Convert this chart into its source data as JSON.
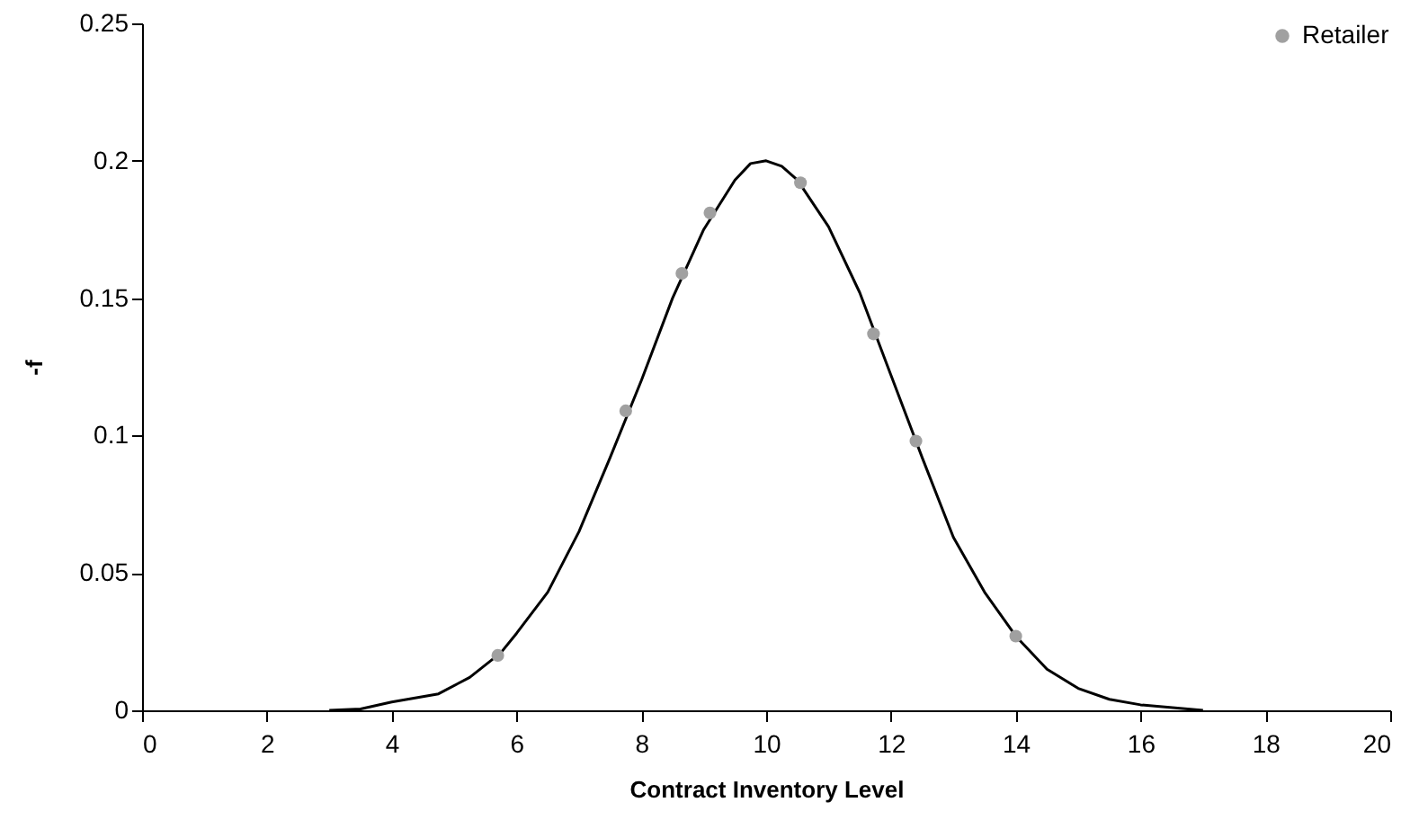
{
  "chart_data": {
    "type": "line",
    "xlabel": "Contract Inventory Level",
    "ylabel": "-f",
    "xlim": [
      0,
      20
    ],
    "xticks": [
      0,
      2,
      4,
      6,
      8,
      10,
      12,
      14,
      16,
      18,
      20
    ],
    "ylim": [
      0,
      0.25
    ],
    "yticks": [
      0,
      0.05,
      0.1,
      0.15,
      0.2,
      0.25
    ],
    "legend": "top right",
    "series": [
      {
        "color": "#000000",
        "x": [
          3,
          3.5,
          4,
          4.75,
          5.25,
          5.75,
          6,
          6.5,
          7,
          7.5,
          8,
          8.5,
          9,
          9.5,
          9.75,
          10,
          10.25,
          10.5,
          11,
          11.5,
          12,
          12.5,
          13,
          13.5,
          14,
          14.5,
          15,
          15.5,
          16,
          17
        ],
        "values": [
          0,
          0.0005,
          0.003,
          0.006,
          0.012,
          0.021,
          0.028,
          0.043,
          0.065,
          0.092,
          0.12,
          0.15,
          0.175,
          0.193,
          0.199,
          0.2,
          0.198,
          0.193,
          0.176,
          0.152,
          0.122,
          0.092,
          0.063,
          0.043,
          0.027,
          0.015,
          0.008,
          0.004,
          0.002,
          0
        ]
      },
      {
        "type": "scatter",
        "marker": "circle",
        "name": "Retailer",
        "color": "#a0a0a0",
        "x": [
          5.7,
          7.75,
          8.65,
          9.1,
          10.55,
          11.72,
          12.4,
          14.0
        ],
        "values": [
          0.02,
          0.109,
          0.159,
          0.181,
          0.192,
          0.137,
          0.098,
          0.027
        ]
      }
    ]
  }
}
